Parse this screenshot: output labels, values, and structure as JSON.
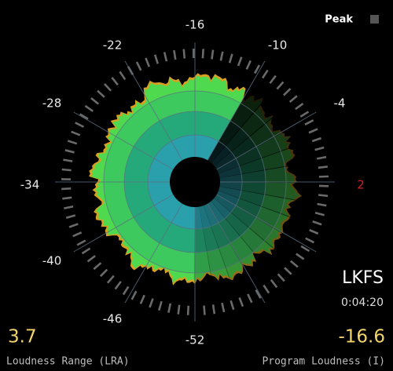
{
  "header": {
    "peak_label": "Peak"
  },
  "dial": {
    "labels": [
      "-52",
      "-46",
      "-40",
      "-34",
      "-28",
      "-22",
      "-16",
      "-10",
      "-4",
      "2"
    ]
  },
  "readout": {
    "unit": "LKFS",
    "time": "0:04:20"
  },
  "footer": {
    "range_value": "3.7",
    "range_label": "Loudness Range (LRA)",
    "program_value": "-16.6",
    "program_label": "Program Loudness (I)"
  }
}
